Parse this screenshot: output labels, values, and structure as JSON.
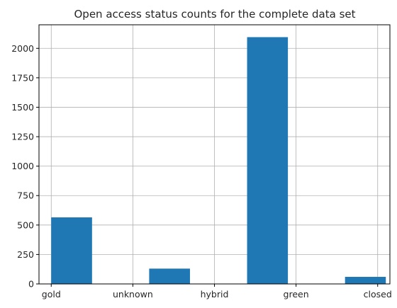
{
  "chart_data": {
    "type": "bar",
    "title": "Open access status counts for the complete data set",
    "xlabel": "",
    "ylabel": "",
    "categories": [
      "gold",
      "unknown",
      "hybrid",
      "green",
      "closed"
    ],
    "values": [
      565,
      130,
      2095,
      60,
      0
    ],
    "xlim": [
      -0.15,
      4.15
    ],
    "ylim": [
      0,
      2200
    ],
    "yticks": [
      0,
      250,
      500,
      750,
      1000,
      1250,
      1500,
      1750,
      2000
    ],
    "grid": true,
    "legend": "none",
    "bar_color": "#1f77b4"
  }
}
